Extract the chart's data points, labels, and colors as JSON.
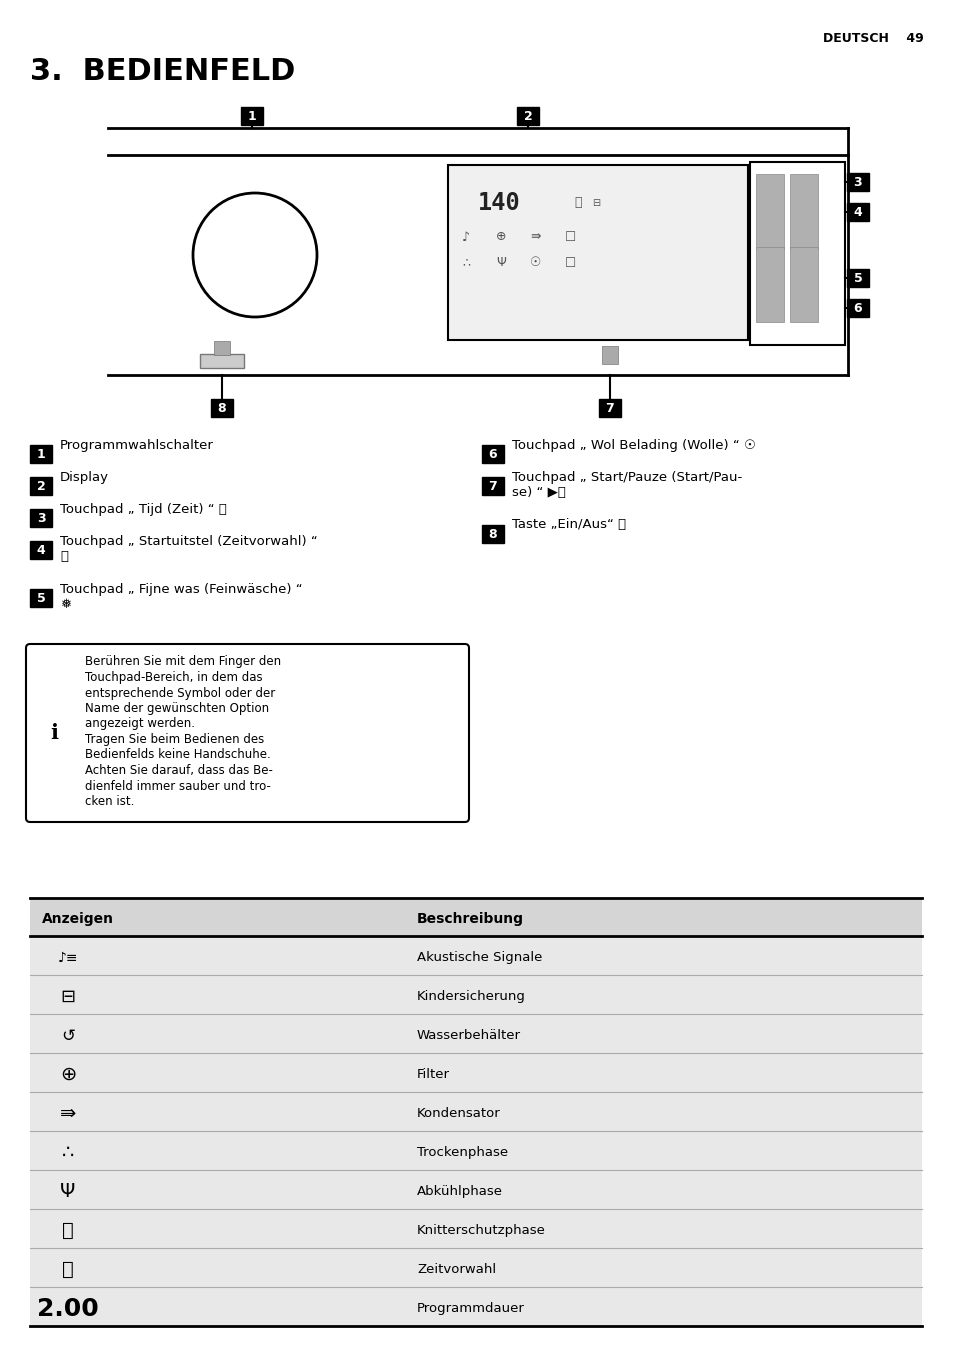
{
  "page_header_right": "DEUTSCH    49",
  "title_number": "3.",
  "title_text": " BEDIENFELD",
  "bg_color": "#ffffff",
  "info_text_lines": [
    "Berühren Sie mit dem Finger den",
    "Touchpad-Bereich, in dem das",
    "entsprechende Symbol oder der",
    "Name der gewünschten Option",
    "angezeigt werden.",
    "Tragen Sie beim Bedienen des",
    "Bedienfelds keine Handschuhe.",
    "Achten Sie darauf, dass das Be-",
    "dienfeld immer sauber und tro-",
    "cken ist."
  ],
  "table_header": [
    "Anzeigen",
    "Beschreibung"
  ],
  "table_descs": [
    "Akustische Signale",
    "Kindersicherung",
    "Wasserbehälter",
    "Filter",
    "Kondensator",
    "Trockenphase",
    "Abkühlphase",
    "Knitterschutzphase",
    "Zeitvorwahl",
    "Programmdauer"
  ],
  "items_left": [
    {
      "num": "1",
      "lines": [
        "Programmwahlschalter"
      ]
    },
    {
      "num": "2",
      "lines": [
        "Display"
      ]
    },
    {
      "num": "3",
      "lines": [
        "Touchpad „ Tijd (Zeit) “ ⌛"
      ]
    },
    {
      "num": "4",
      "lines": [
        "Touchpad „ Startuitstel (Zeitvorwahl) “",
        "⏰"
      ]
    },
    {
      "num": "5",
      "lines": [
        "Touchpad „ Fijne was (Feinwäsche) “",
        "❅"
      ]
    }
  ],
  "items_right": [
    {
      "num": "6",
      "lines": [
        "Touchpad „ Wol Belading (Wolle) “ ☉"
      ]
    },
    {
      "num": "7",
      "lines": [
        "Touchpad „ Start/Pauze (Start/Pau-",
        "se) “ ▶⏸"
      ]
    },
    {
      "num": "8",
      "lines": [
        "Taste „Ein/Aus“ ⏻"
      ]
    }
  ]
}
